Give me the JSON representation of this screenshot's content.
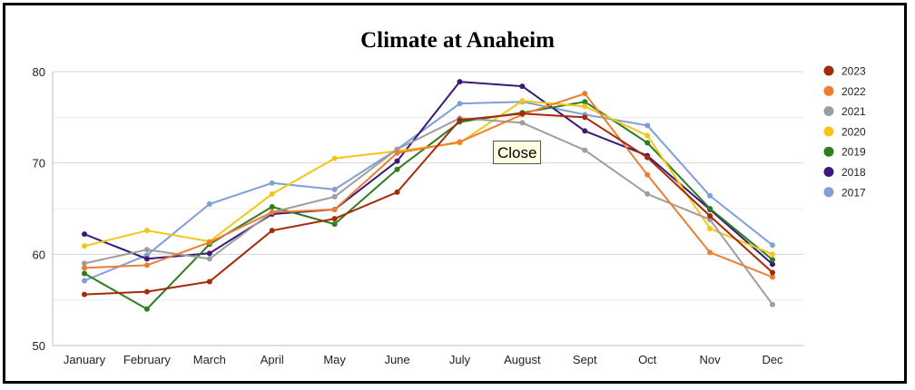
{
  "tooltip": {
    "label": "Close"
  },
  "chart_data": {
    "type": "line",
    "title": "Climate at Anaheim",
    "xlabel": "",
    "ylabel": "",
    "categories": [
      "January",
      "February",
      "March",
      "April",
      "May",
      "June",
      "July",
      "August",
      "Sept",
      "Oct",
      "Nov",
      "Dec"
    ],
    "ylim": [
      50,
      80
    ],
    "yticks": [
      50,
      60,
      70,
      80
    ],
    "grid": true,
    "legend_position": "right",
    "series": [
      {
        "name": "2023",
        "color": "#a52a0a",
        "values": [
          55.6,
          55.9,
          57.0,
          62.6,
          63.9,
          66.8,
          74.7,
          75.4,
          75.0,
          70.6,
          64.2,
          58.0
        ]
      },
      {
        "name": "2022",
        "color": "#ed7d31",
        "values": [
          58.5,
          58.8,
          61.3,
          64.6,
          64.9,
          71.1,
          72.3,
          75.3,
          77.6,
          68.7,
          60.2,
          57.5
        ]
      },
      {
        "name": "2021",
        "color": "#9e9e9e",
        "values": [
          59.0,
          60.5,
          59.5,
          64.6,
          66.3,
          71.5,
          74.9,
          74.4,
          71.4,
          66.6,
          63.8,
          54.5
        ]
      },
      {
        "name": "2020",
        "color": "#f5c518",
        "values": [
          60.9,
          62.6,
          61.4,
          66.6,
          70.5,
          71.3,
          72.2,
          76.8,
          76.2,
          73.0,
          62.8,
          60.0
        ]
      },
      {
        "name": "2019",
        "color": "#2e7d1f",
        "values": [
          57.9,
          54.0,
          61.1,
          65.2,
          63.3,
          69.3,
          74.5,
          75.5,
          76.7,
          72.2,
          65.0,
          59.4
        ]
      },
      {
        "name": "2018",
        "color": "#3a1a78",
        "values": [
          62.2,
          59.5,
          60.1,
          64.4,
          64.9,
          70.2,
          78.9,
          78.4,
          73.5,
          70.8,
          64.9,
          58.9
        ]
      },
      {
        "name": "2017",
        "color": "#7f9fd6",
        "values": [
          57.1,
          59.9,
          65.5,
          67.8,
          67.1,
          71.5,
          76.5,
          76.7,
          75.3,
          74.1,
          66.4,
          61.0
        ]
      }
    ]
  }
}
